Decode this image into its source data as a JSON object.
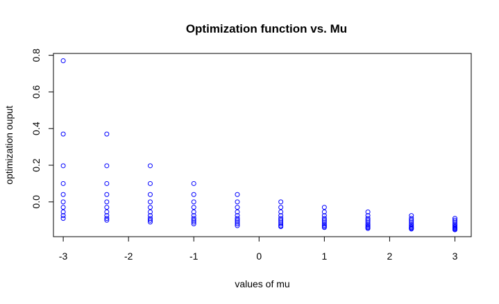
{
  "chart_data": {
    "type": "scatter",
    "title": "Optimization function vs. Mu",
    "xlabel": "values of mu",
    "ylabel": "optimization ouput",
    "xlim": [
      -3.15,
      3.25
    ],
    "ylim": [
      -0.19,
      0.81
    ],
    "xticks": [
      -3,
      -2,
      -1,
      0,
      1,
      2,
      3
    ],
    "xtick_labels": [
      "-3",
      "-2",
      "-1",
      "0",
      "1",
      "2",
      "3"
    ],
    "yticks": [
      0.0,
      0.2,
      0.4,
      0.6,
      0.8
    ],
    "ytick_labels": [
      "0.0",
      "0.2",
      "0.4",
      "0.6",
      "0.8"
    ],
    "grid": false,
    "marker_color": "#0000ff",
    "series": [
      {
        "points": [
          {
            "x": -3,
            "y": 0.77
          },
          {
            "x": -3,
            "y": 0.37
          },
          {
            "x": -3,
            "y": 0.197
          },
          {
            "x": -3,
            "y": 0.1
          },
          {
            "x": -3,
            "y": 0.04
          },
          {
            "x": -3,
            "y": 0.0
          },
          {
            "x": -3,
            "y": -0.03
          },
          {
            "x": -3,
            "y": -0.055
          },
          {
            "x": -3,
            "y": -0.075
          },
          {
            "x": -3,
            "y": -0.09
          },
          {
            "x": -2.333,
            "y": 0.37
          },
          {
            "x": -2.333,
            "y": 0.197
          },
          {
            "x": -2.333,
            "y": 0.1
          },
          {
            "x": -2.333,
            "y": 0.04
          },
          {
            "x": -2.333,
            "y": 0.0
          },
          {
            "x": -2.333,
            "y": -0.03
          },
          {
            "x": -2.333,
            "y": -0.055
          },
          {
            "x": -2.333,
            "y": -0.075
          },
          {
            "x": -2.333,
            "y": -0.09
          },
          {
            "x": -2.333,
            "y": -0.1
          },
          {
            "x": -1.667,
            "y": 0.197
          },
          {
            "x": -1.667,
            "y": 0.1
          },
          {
            "x": -1.667,
            "y": 0.04
          },
          {
            "x": -1.667,
            "y": 0.0
          },
          {
            "x": -1.667,
            "y": -0.03
          },
          {
            "x": -1.667,
            "y": -0.055
          },
          {
            "x": -1.667,
            "y": -0.075
          },
          {
            "x": -1.667,
            "y": -0.09
          },
          {
            "x": -1.667,
            "y": -0.1
          },
          {
            "x": -1.667,
            "y": -0.11
          },
          {
            "x": -1,
            "y": 0.1
          },
          {
            "x": -1,
            "y": 0.04
          },
          {
            "x": -1,
            "y": 0.0
          },
          {
            "x": -1,
            "y": -0.03
          },
          {
            "x": -1,
            "y": -0.055
          },
          {
            "x": -1,
            "y": -0.075
          },
          {
            "x": -1,
            "y": -0.09
          },
          {
            "x": -1,
            "y": -0.1
          },
          {
            "x": -1,
            "y": -0.11
          },
          {
            "x": -1,
            "y": -0.12
          },
          {
            "x": -0.333,
            "y": 0.04
          },
          {
            "x": -0.333,
            "y": 0.0
          },
          {
            "x": -0.333,
            "y": -0.03
          },
          {
            "x": -0.333,
            "y": -0.055
          },
          {
            "x": -0.333,
            "y": -0.075
          },
          {
            "x": -0.333,
            "y": -0.09
          },
          {
            "x": -0.333,
            "y": -0.1
          },
          {
            "x": -0.333,
            "y": -0.11
          },
          {
            "x": -0.333,
            "y": -0.12
          },
          {
            "x": -0.333,
            "y": -0.13
          },
          {
            "x": 0.333,
            "y": 0.0
          },
          {
            "x": 0.333,
            "y": -0.03
          },
          {
            "x": 0.333,
            "y": -0.055
          },
          {
            "x": 0.333,
            "y": -0.075
          },
          {
            "x": 0.333,
            "y": -0.09
          },
          {
            "x": 0.333,
            "y": -0.1
          },
          {
            "x": 0.333,
            "y": -0.11
          },
          {
            "x": 0.333,
            "y": -0.12
          },
          {
            "x": 0.333,
            "y": -0.13
          },
          {
            "x": 0.333,
            "y": -0.135
          },
          {
            "x": 1,
            "y": -0.03
          },
          {
            "x": 1,
            "y": -0.055
          },
          {
            "x": 1,
            "y": -0.075
          },
          {
            "x": 1,
            "y": -0.09
          },
          {
            "x": 1,
            "y": -0.1
          },
          {
            "x": 1,
            "y": -0.11
          },
          {
            "x": 1,
            "y": -0.12
          },
          {
            "x": 1,
            "y": -0.128
          },
          {
            "x": 1,
            "y": -0.135
          },
          {
            "x": 1,
            "y": -0.14
          },
          {
            "x": 1.667,
            "y": -0.055
          },
          {
            "x": 1.667,
            "y": -0.075
          },
          {
            "x": 1.667,
            "y": -0.09
          },
          {
            "x": 1.667,
            "y": -0.1
          },
          {
            "x": 1.667,
            "y": -0.11
          },
          {
            "x": 1.667,
            "y": -0.12
          },
          {
            "x": 1.667,
            "y": -0.128
          },
          {
            "x": 1.667,
            "y": -0.135
          },
          {
            "x": 1.667,
            "y": -0.14
          },
          {
            "x": 1.667,
            "y": -0.145
          },
          {
            "x": 2.333,
            "y": -0.075
          },
          {
            "x": 2.333,
            "y": -0.09
          },
          {
            "x": 2.333,
            "y": -0.1
          },
          {
            "x": 2.333,
            "y": -0.11
          },
          {
            "x": 2.333,
            "y": -0.12
          },
          {
            "x": 2.333,
            "y": -0.128
          },
          {
            "x": 2.333,
            "y": -0.135
          },
          {
            "x": 2.333,
            "y": -0.14
          },
          {
            "x": 2.333,
            "y": -0.145
          },
          {
            "x": 2.333,
            "y": -0.148
          },
          {
            "x": 3,
            "y": -0.09
          },
          {
            "x": 3,
            "y": -0.1
          },
          {
            "x": 3,
            "y": -0.11
          },
          {
            "x": 3,
            "y": -0.12
          },
          {
            "x": 3,
            "y": -0.128
          },
          {
            "x": 3,
            "y": -0.135
          },
          {
            "x": 3,
            "y": -0.14
          },
          {
            "x": 3,
            "y": -0.145
          },
          {
            "x": 3,
            "y": -0.148
          },
          {
            "x": 3,
            "y": -0.152
          }
        ]
      }
    ]
  }
}
